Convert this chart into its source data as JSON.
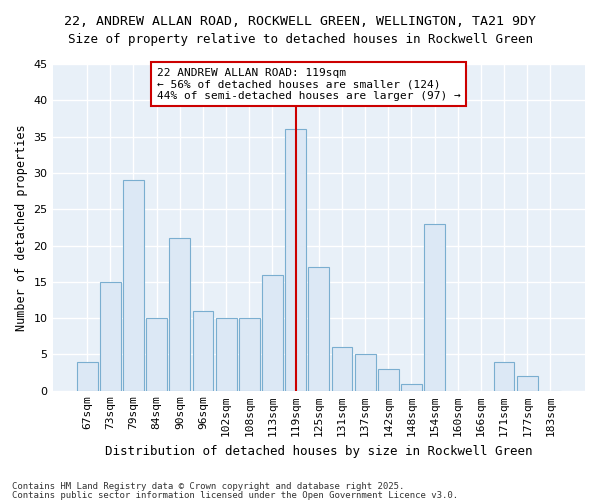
{
  "title1": "22, ANDREW ALLAN ROAD, ROCKWELL GREEN, WELLINGTON, TA21 9DY",
  "title2": "Size of property relative to detached houses in Rockwell Green",
  "xlabel": "Distribution of detached houses by size in Rockwell Green",
  "ylabel": "Number of detached properties",
  "categories": [
    "67sqm",
    "73sqm",
    "79sqm",
    "84sqm",
    "90sqm",
    "96sqm",
    "102sqm",
    "108sqm",
    "113sqm",
    "119sqm",
    "125sqm",
    "131sqm",
    "137sqm",
    "142sqm",
    "148sqm",
    "154sqm",
    "160sqm",
    "166sqm",
    "171sqm",
    "177sqm",
    "183sqm"
  ],
  "values": [
    4,
    15,
    29,
    10,
    21,
    11,
    10,
    10,
    16,
    36,
    17,
    6,
    5,
    3,
    1,
    23,
    0,
    0,
    4,
    2,
    0
  ],
  "bar_color": "#dce8f5",
  "bar_edge_color": "#7aaed0",
  "highlight_index": 9,
  "highlight_line_color": "#cc0000",
  "ylim": [
    0,
    45
  ],
  "yticks": [
    0,
    5,
    10,
    15,
    20,
    25,
    30,
    35,
    40,
    45
  ],
  "annotation_text": "22 ANDREW ALLAN ROAD: 119sqm\n← 56% of detached houses are smaller (124)\n44% of semi-detached houses are larger (97) →",
  "annotation_box_color": "#ffffff",
  "annotation_box_edge": "#cc0000",
  "footer1": "Contains HM Land Registry data © Crown copyright and database right 2025.",
  "footer2": "Contains public sector information licensed under the Open Government Licence v3.0.",
  "background_color": "#ffffff",
  "plot_bg_color": "#e8f0f8",
  "grid_color": "#ffffff",
  "title1_fontsize": 9.5,
  "title2_fontsize": 9.0,
  "xlabel_fontsize": 9.0,
  "ylabel_fontsize": 8.5,
  "tick_fontsize": 8.0,
  "annot_fontsize": 8.0,
  "footer_fontsize": 6.5
}
